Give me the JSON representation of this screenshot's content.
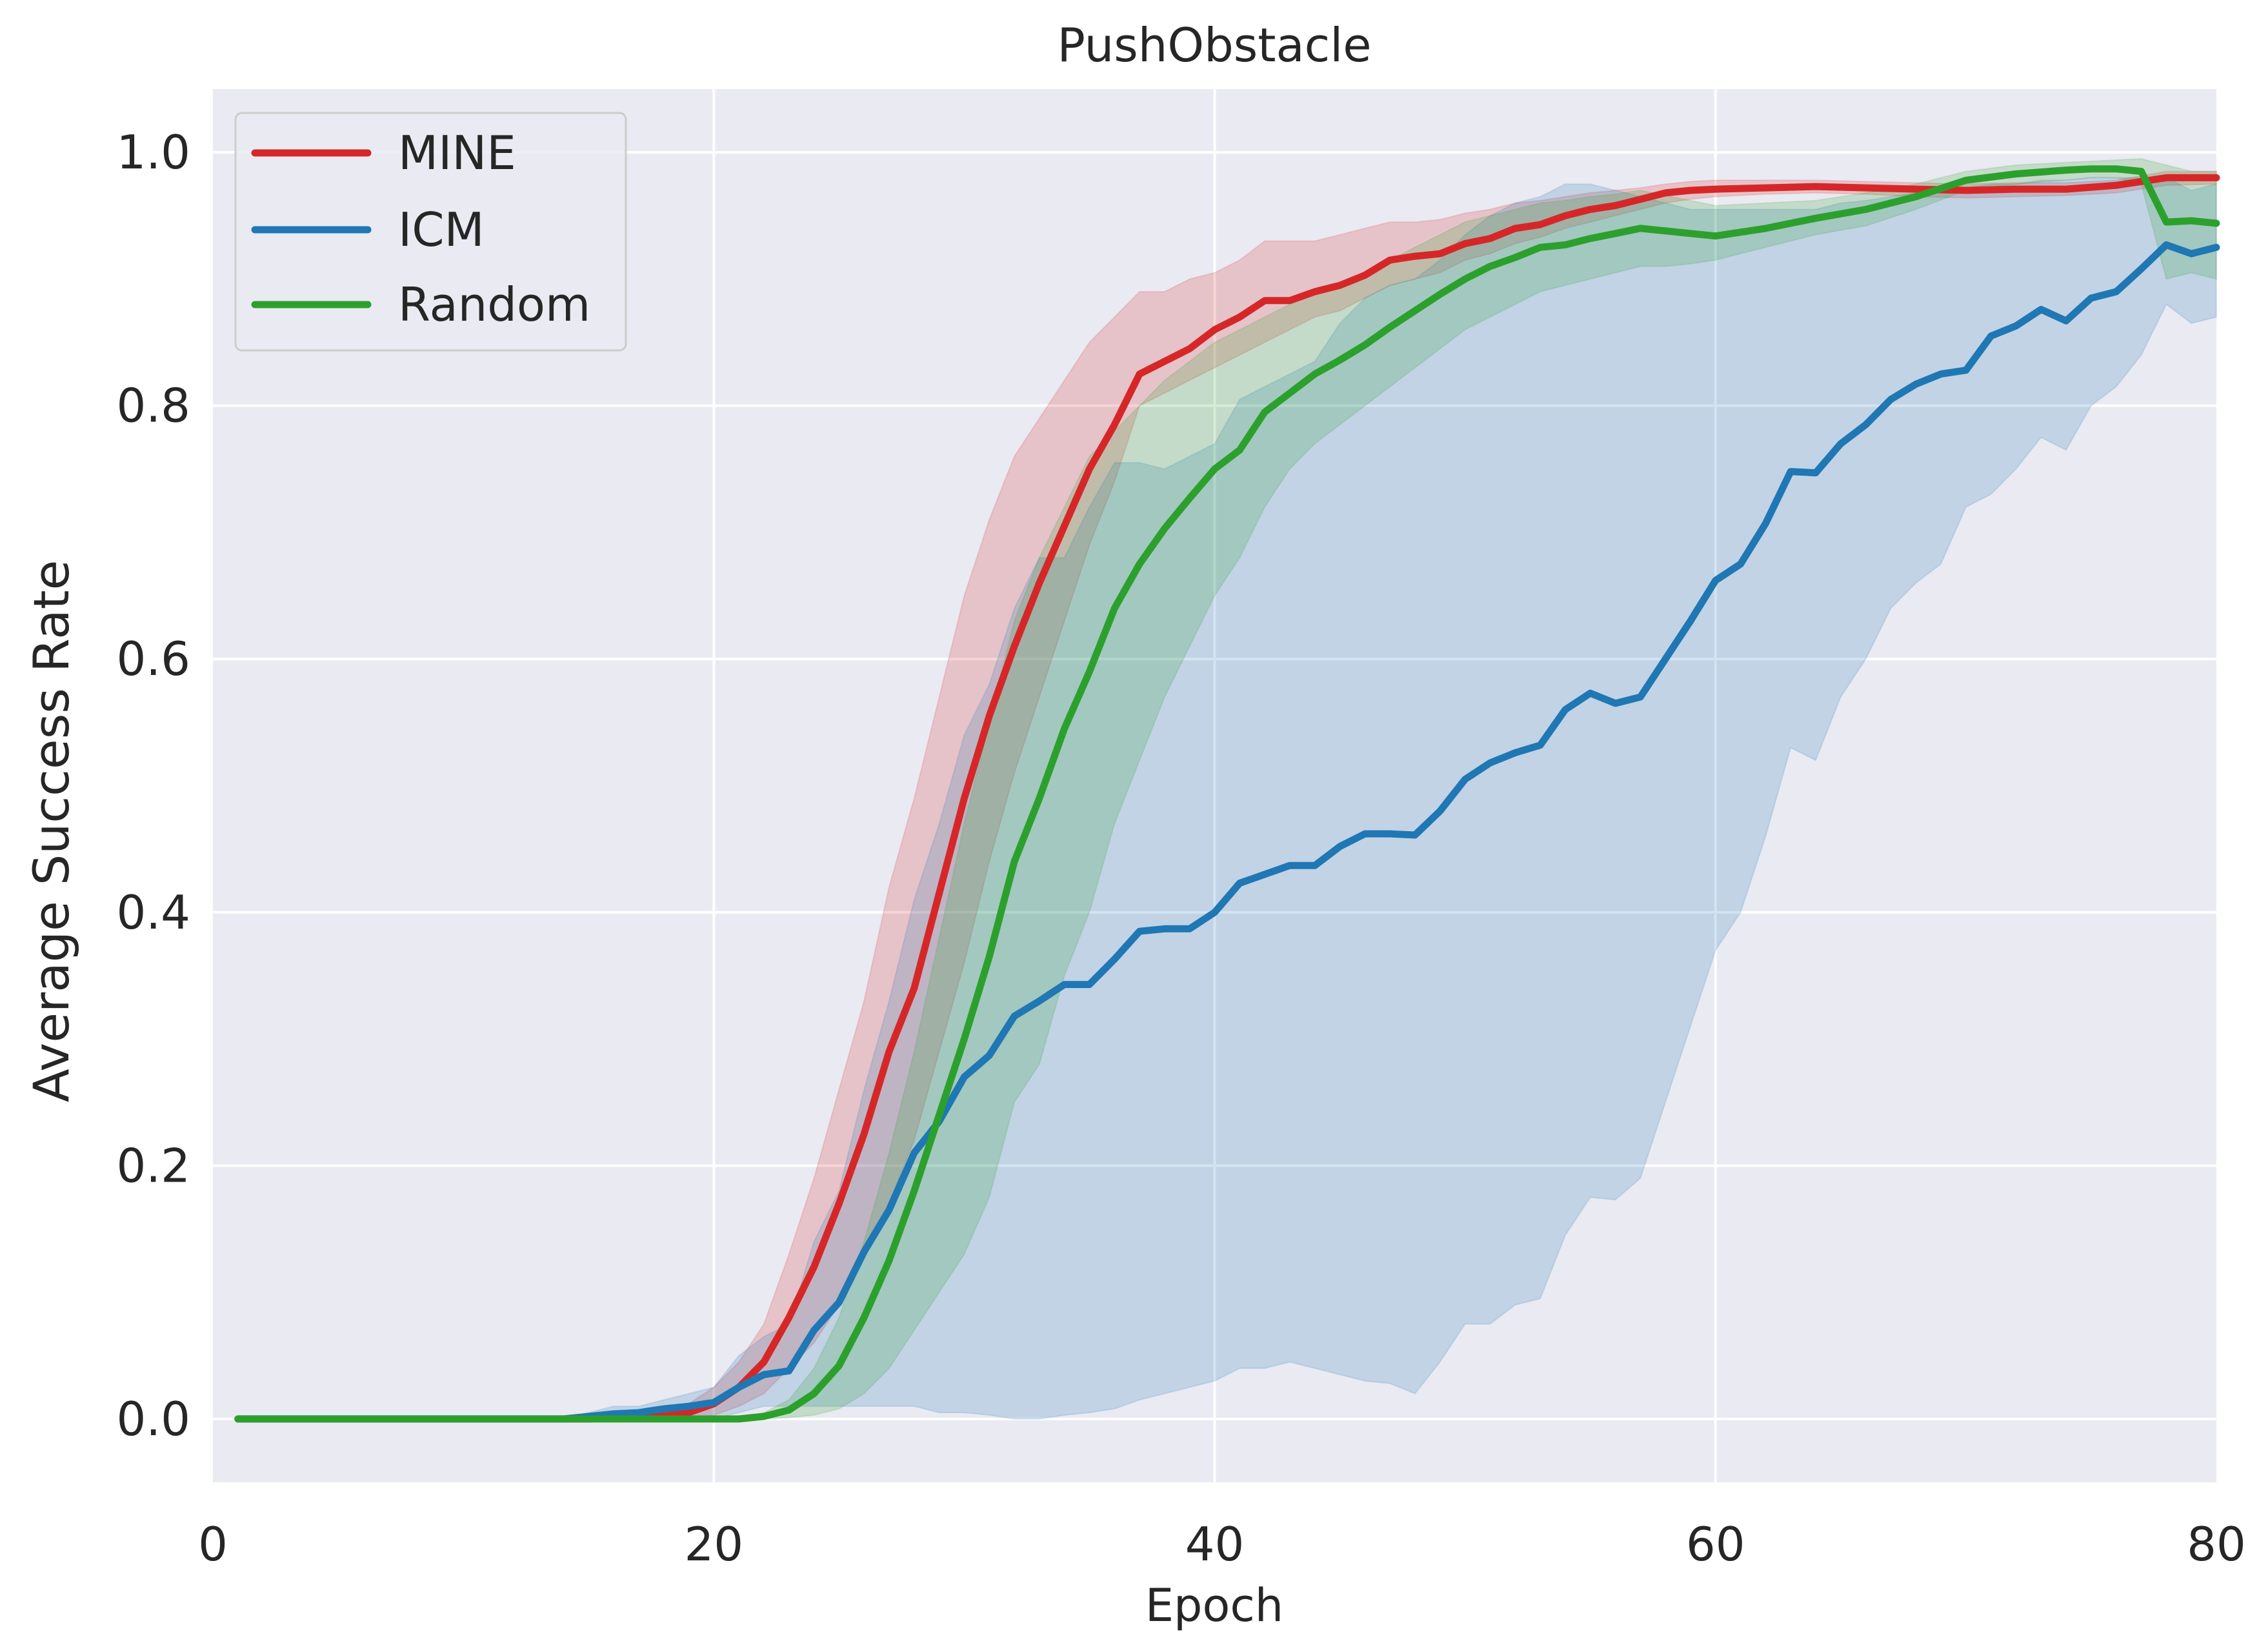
{
  "chart_data": {
    "type": "line",
    "title": "PushObstacle",
    "xlabel": "Epoch",
    "ylabel": "Average Success Rate",
    "xlim": [
      0,
      80
    ],
    "ylim": [
      -0.05,
      1.05
    ],
    "xticks": [
      0,
      20,
      40,
      60,
      80
    ],
    "xtick_labels": [
      "0",
      "20",
      "40",
      "60",
      "80"
    ],
    "yticks": [
      0.0,
      0.2,
      0.4,
      0.6,
      0.8,
      1.0
    ],
    "ytick_labels": [
      "0.0",
      "0.2",
      "0.4",
      "0.6",
      "0.8",
      "1.0"
    ],
    "grid": true,
    "legend_position": "top-left",
    "background": "#EAEAF2",
    "series": [
      {
        "name": "MINE",
        "color": "#D62728",
        "x": [
          1,
          5,
          10,
          15,
          19,
          20,
          21,
          22,
          23,
          24,
          25,
          26,
          27,
          28,
          29,
          30,
          31,
          32,
          33,
          34,
          35,
          36,
          37,
          38,
          39,
          40,
          41,
          42,
          43,
          44,
          45,
          46,
          47,
          48,
          49,
          50,
          51,
          52,
          53,
          54,
          55,
          56,
          57,
          58,
          59,
          60,
          62,
          64,
          66,
          68,
          70,
          72,
          74,
          76,
          78,
          80
        ],
        "values": [
          0,
          0,
          0,
          0,
          0.005,
          0.012,
          0.025,
          0.045,
          0.08,
          0.12,
          0.17,
          0.225,
          0.29,
          0.34,
          0.415,
          0.49,
          0.555,
          0.61,
          0.66,
          0.705,
          0.75,
          0.785,
          0.825,
          0.835,
          0.845,
          0.86,
          0.87,
          0.883,
          0.883,
          0.89,
          0.895,
          0.903,
          0.915,
          0.918,
          0.92,
          0.928,
          0.932,
          0.94,
          0.943,
          0.95,
          0.955,
          0.958,
          0.963,
          0.968,
          0.97,
          0.971,
          0.972,
          0.973,
          0.972,
          0.971,
          0.97,
          0.971,
          0.971,
          0.974,
          0.98,
          0.98
        ],
        "lower": [
          0,
          0,
          0,
          0,
          0,
          0.003,
          0.01,
          0.02,
          0.04,
          0.06,
          0.09,
          0.13,
          0.17,
          0.22,
          0.29,
          0.36,
          0.44,
          0.51,
          0.57,
          0.63,
          0.69,
          0.74,
          0.8,
          0.81,
          0.82,
          0.83,
          0.84,
          0.85,
          0.86,
          0.87,
          0.875,
          0.885,
          0.895,
          0.9,
          0.905,
          0.915,
          0.92,
          0.928,
          0.933,
          0.94,
          0.945,
          0.95,
          0.955,
          0.96,
          0.963,
          0.965,
          0.967,
          0.968,
          0.967,
          0.965,
          0.964,
          0.965,
          0.966,
          0.968,
          0.974,
          0.975
        ],
        "upper": [
          0,
          0,
          0,
          0,
          0.012,
          0.025,
          0.045,
          0.075,
          0.13,
          0.19,
          0.26,
          0.33,
          0.42,
          0.49,
          0.57,
          0.65,
          0.71,
          0.76,
          0.79,
          0.82,
          0.85,
          0.87,
          0.89,
          0.89,
          0.9,
          0.905,
          0.915,
          0.93,
          0.93,
          0.93,
          0.935,
          0.94,
          0.945,
          0.945,
          0.947,
          0.952,
          0.955,
          0.96,
          0.962,
          0.965,
          0.968,
          0.97,
          0.972,
          0.975,
          0.977,
          0.978,
          0.978,
          0.978,
          0.977,
          0.976,
          0.975,
          0.976,
          0.976,
          0.978,
          0.985,
          0.985
        ]
      },
      {
        "name": "ICM",
        "color": "#1F77B4",
        "x": [
          1,
          5,
          10,
          14,
          16,
          17,
          18,
          19,
          20,
          21,
          22,
          23,
          24,
          25,
          26,
          27,
          28,
          29,
          30,
          31,
          32,
          33,
          34,
          35,
          36,
          37,
          38,
          39,
          40,
          41,
          42,
          43,
          44,
          45,
          46,
          47,
          48,
          49,
          50,
          51,
          52,
          53,
          54,
          55,
          56,
          57,
          58,
          59,
          60,
          61,
          62,
          63,
          64,
          65,
          66,
          67,
          68,
          69,
          70,
          71,
          72,
          73,
          74,
          75,
          76,
          77,
          78,
          79,
          80
        ],
        "values": [
          0,
          0,
          0,
          0,
          0.004,
          0.005,
          0.008,
          0.01,
          0.013,
          0.025,
          0.035,
          0.038,
          0.07,
          0.092,
          0.132,
          0.165,
          0.21,
          0.235,
          0.27,
          0.287,
          0.318,
          0.33,
          0.343,
          0.343,
          0.363,
          0.385,
          0.387,
          0.387,
          0.4,
          0.423,
          0.43,
          0.437,
          0.437,
          0.452,
          0.462,
          0.462,
          0.461,
          0.48,
          0.505,
          0.518,
          0.526,
          0.532,
          0.56,
          0.573,
          0.565,
          0.57,
          0.6,
          0.63,
          0.662,
          0.675,
          0.707,
          0.748,
          0.747,
          0.77,
          0.785,
          0.805,
          0.817,
          0.825,
          0.828,
          0.855,
          0.863,
          0.876,
          0.867,
          0.885,
          0.89,
          0.908,
          0.927,
          0.92,
          0.925
        ],
        "lower": [
          0,
          0,
          0,
          0,
          0,
          0,
          0,
          0,
          0,
          0.005,
          0.01,
          0.01,
          0.01,
          0.01,
          0.01,
          0.01,
          0.01,
          0.005,
          0.005,
          0.003,
          0.0,
          0.0,
          0.003,
          0.005,
          0.008,
          0.015,
          0.02,
          0.025,
          0.03,
          0.04,
          0.04,
          0.045,
          0.04,
          0.035,
          0.03,
          0.028,
          0.02,
          0.045,
          0.075,
          0.075,
          0.09,
          0.095,
          0.145,
          0.175,
          0.173,
          0.19,
          0.25,
          0.31,
          0.37,
          0.4,
          0.46,
          0.53,
          0.52,
          0.57,
          0.6,
          0.64,
          0.66,
          0.675,
          0.72,
          0.73,
          0.75,
          0.775,
          0.765,
          0.8,
          0.815,
          0.84,
          0.88,
          0.865,
          0.87
        ],
        "upper": [
          0,
          0,
          0,
          0,
          0.01,
          0.01,
          0.015,
          0.02,
          0.025,
          0.05,
          0.065,
          0.075,
          0.14,
          0.18,
          0.26,
          0.33,
          0.41,
          0.47,
          0.54,
          0.58,
          0.64,
          0.68,
          0.68,
          0.72,
          0.755,
          0.755,
          0.75,
          0.76,
          0.77,
          0.805,
          0.815,
          0.825,
          0.835,
          0.865,
          0.885,
          0.895,
          0.9,
          0.915,
          0.935,
          0.95,
          0.96,
          0.965,
          0.975,
          0.975,
          0.97,
          0.965,
          0.96,
          0.955,
          0.955,
          0.955,
          0.955,
          0.955,
          0.955,
          0.96,
          0.962,
          0.965,
          0.968,
          0.97,
          0.972,
          0.975,
          0.975,
          0.978,
          0.978,
          0.98,
          0.98,
          0.98,
          0.98,
          0.97,
          0.975
        ]
      },
      {
        "name": "Random",
        "color": "#2CA02C",
        "x": [
          1,
          5,
          10,
          15,
          20,
          21,
          22,
          23,
          24,
          25,
          26,
          27,
          28,
          29,
          30,
          31,
          32,
          33,
          34,
          35,
          36,
          37,
          38,
          39,
          40,
          41,
          42,
          43,
          44,
          45,
          46,
          47,
          48,
          49,
          50,
          51,
          52,
          53,
          54,
          55,
          56,
          57,
          58,
          59,
          60,
          62,
          64,
          66,
          68,
          70,
          72,
          74,
          75,
          76,
          77,
          78,
          79,
          80
        ],
        "values": [
          0,
          0,
          0,
          0,
          0,
          0,
          0.002,
          0.007,
          0.02,
          0.042,
          0.08,
          0.125,
          0.18,
          0.24,
          0.3,
          0.365,
          0.44,
          0.49,
          0.545,
          0.59,
          0.64,
          0.675,
          0.703,
          0.727,
          0.75,
          0.765,
          0.795,
          0.81,
          0.825,
          0.836,
          0.848,
          0.862,
          0.875,
          0.888,
          0.9,
          0.91,
          0.917,
          0.925,
          0.927,
          0.932,
          0.936,
          0.94,
          0.938,
          0.936,
          0.934,
          0.94,
          0.948,
          0.955,
          0.965,
          0.978,
          0.983,
          0.986,
          0.987,
          0.987,
          0.985,
          0.945,
          0.946,
          0.944
        ],
        "lower": [
          0,
          0,
          0,
          0,
          0,
          0,
          0,
          0.001,
          0.003,
          0.008,
          0.02,
          0.04,
          0.07,
          0.1,
          0.13,
          0.175,
          0.25,
          0.28,
          0.35,
          0.4,
          0.47,
          0.52,
          0.57,
          0.61,
          0.65,
          0.68,
          0.72,
          0.75,
          0.77,
          0.785,
          0.8,
          0.815,
          0.83,
          0.845,
          0.86,
          0.87,
          0.88,
          0.89,
          0.895,
          0.9,
          0.905,
          0.91,
          0.91,
          0.912,
          0.915,
          0.925,
          0.935,
          0.942,
          0.955,
          0.97,
          0.975,
          0.978,
          0.98,
          0.98,
          0.975,
          0.9,
          0.905,
          0.9
        ],
        "upper": [
          0,
          0,
          0,
          0,
          0,
          0,
          0.005,
          0.015,
          0.04,
          0.08,
          0.14,
          0.21,
          0.29,
          0.38,
          0.47,
          0.55,
          0.63,
          0.68,
          0.72,
          0.76,
          0.78,
          0.8,
          0.82,
          0.835,
          0.85,
          0.86,
          0.87,
          0.88,
          0.89,
          0.895,
          0.905,
          0.915,
          0.925,
          0.935,
          0.945,
          0.95,
          0.955,
          0.96,
          0.962,
          0.965,
          0.967,
          0.97,
          0.966,
          0.962,
          0.958,
          0.96,
          0.962,
          0.968,
          0.975,
          0.985,
          0.99,
          0.992,
          0.993,
          0.994,
          0.995,
          0.99,
          0.985,
          0.985
        ]
      }
    ]
  }
}
